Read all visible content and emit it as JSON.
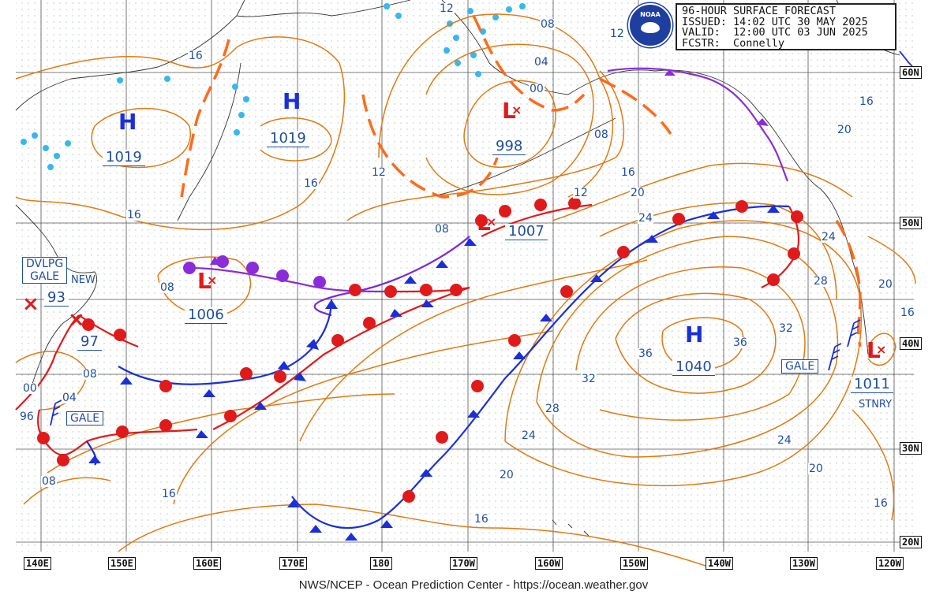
{
  "header": {
    "line1": "96-HOUR SURFACE FORECAST",
    "line2": "ISSUED: 14:02 UTC 30 MAY 2025",
    "line3": "VALID:  12:00 UTC 03 JUN 2025",
    "line4": "FCSTR:  Connelly"
  },
  "logo": {
    "label": "NOAA"
  },
  "footer": "NWS/NCEP - Ocean Prediction Center - https://ocean.weather.gov",
  "longitudes": [
    "140E",
    "150E",
    "160E",
    "170E",
    "180",
    "170W",
    "160W",
    "150W",
    "140W",
    "130W",
    "120W"
  ],
  "latitudes": [
    "60N",
    "50N",
    "40N",
    "30N",
    "20N"
  ],
  "systems": {
    "high_1": {
      "symbol": "H",
      "pressure": "1019"
    },
    "high_2": {
      "symbol": "H",
      "pressure": "1019"
    },
    "high_3": {
      "symbol": "H",
      "pressure": "1040"
    },
    "low_bering": {
      "symbol": "L",
      "pressure": "998"
    },
    "low_aleutian": {
      "symbol": "L",
      "pressure": "1007"
    },
    "low_west": {
      "symbol": "L",
      "pressure": "1006"
    },
    "low_coast": {
      "symbol": "L",
      "pressure": "1011",
      "note": "STNRY"
    },
    "low_japan_a": {
      "pressure": "93"
    },
    "low_japan_b": {
      "pressure": "97"
    }
  },
  "warnings": {
    "dvlpg_gale_line1": "DVLPG",
    "dvlpg_gale_line2": "GALE",
    "new": "NEW",
    "gale_west": "GALE",
    "gale_east": "GALE"
  },
  "isobar_labels": {
    "l16_nw": "16",
    "l16_a": "16",
    "l16_b": "16",
    "l12_n": "12",
    "l12_ak": "12",
    "l08_ne": "08",
    "l04": "04",
    "l00": "00",
    "l08_b": "08",
    "l12_c": "12",
    "l16_c": "16",
    "l20": "20",
    "l24": "24",
    "l16_ne": "16",
    "l20_ne": "20",
    "l24_e": "24",
    "l28_e": "28",
    "l32_e": "32",
    "l36_e": "36",
    "l36_c": "36",
    "l32_c": "32",
    "l28_c": "28",
    "l24_c": "24",
    "l20_c": "20",
    "l16_s": "16",
    "l16_sw": "16",
    "l24_se": "24",
    "l20_se": "20",
    "l16_se": "16",
    "l20_coast": "20",
    "l16_coast": "16",
    "l12_aleut": "12",
    "l08_aleut": "08",
    "l08_w": "08",
    "l08_jp": "08",
    "l04_jp": "04",
    "l00_jp": "00",
    "l96_jp": "96",
    "l08_sw": "08"
  }
}
